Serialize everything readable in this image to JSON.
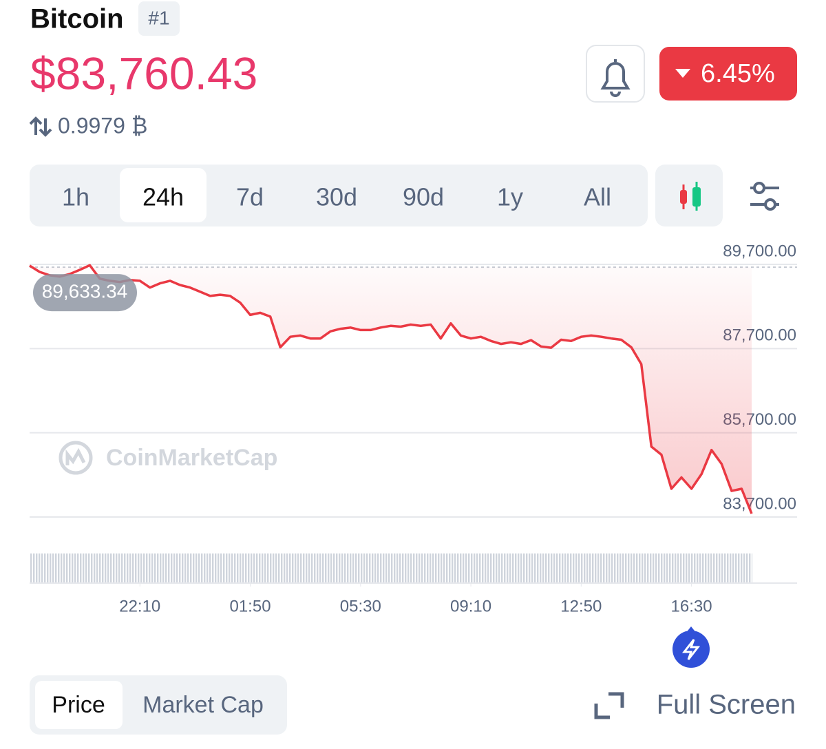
{
  "header": {
    "name": "Bitcoin",
    "rank": "#1",
    "price": "$83,760.43",
    "btc_price": "0.9979 ₿",
    "change": "6.45%"
  },
  "tabs": [
    "1h",
    "24h",
    "7d",
    "30d",
    "90d",
    "1y",
    "All"
  ],
  "selected_tab": "24h",
  "toggle": [
    "Price",
    "Market Cap"
  ],
  "full_screen": "Full Screen",
  "watermark": "CoinMarketCap",
  "chart_data": {
    "type": "line",
    "color": "#ea3943",
    "values": [
      89670,
      89520,
      89440,
      89410,
      89470,
      89570,
      89680,
      89360,
      89310,
      89280,
      89330,
      89310,
      89150,
      89250,
      89310,
      89210,
      89150,
      89050,
      88950,
      88980,
      88950,
      88790,
      88500,
      88550,
      88460,
      87730,
      87980,
      88010,
      87940,
      87940,
      88110,
      88170,
      88200,
      88140,
      88140,
      88200,
      88240,
      88220,
      88270,
      88240,
      88270,
      87940,
      88300,
      88010,
      87940,
      87980,
      87880,
      87810,
      87850,
      87810,
      87900,
      87750,
      87720,
      87910,
      87880,
      87980,
      88010,
      87980,
      87940,
      87910,
      87730,
      87330,
      85370,
      85180,
      84370,
      84640,
      84370,
      84720,
      85290,
      84960,
      84320,
      84370,
      83780
    ],
    "xlim": [
      0,
      72
    ],
    "xticks": [
      {
        "value": 11,
        "label": "22:10"
      },
      {
        "value": 22,
        "label": "01:50"
      },
      {
        "value": 33,
        "label": "05:30"
      },
      {
        "value": 44,
        "label": "09:10"
      },
      {
        "value": 55,
        "label": "12:50"
      },
      {
        "value": 66,
        "label": "16:30"
      }
    ],
    "ylim": [
      83500,
      89900
    ],
    "yticks": [
      {
        "value": 83700,
        "label": "83,700.00"
      },
      {
        "value": 85700,
        "label": "85,700.00"
      },
      {
        "value": 87700,
        "label": "87,700.00"
      },
      {
        "value": 89700,
        "label": "89,700.00"
      }
    ],
    "grid": true,
    "annotation": {
      "value": 89633.34,
      "label": "89,633.34"
    }
  }
}
